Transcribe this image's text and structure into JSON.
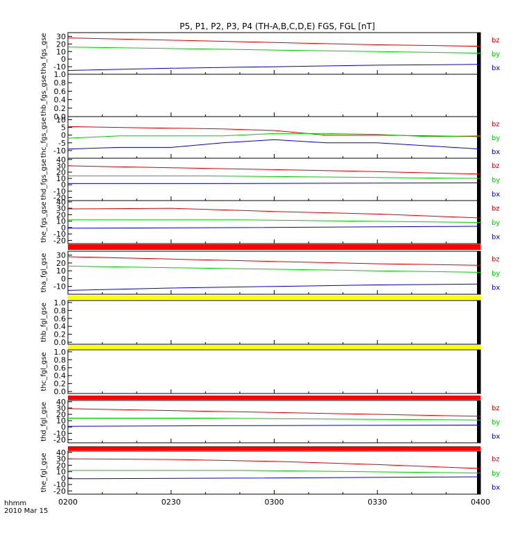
{
  "title": "P5, P1, P2, P3, P4 (TH-A,B,C,D,E) FGS, FGL [nT]",
  "x_axis": {
    "ticks": [
      "0200",
      "0230",
      "0300",
      "0330",
      "0400"
    ],
    "label_line1": "hhmm",
    "label_line2": "2010 Mar 15",
    "range_minutes": [
      0,
      120
    ]
  },
  "colors": {
    "bz": "#e00000",
    "by": "#00d000",
    "bx": "#0000d0",
    "red_bar": "#ff0000",
    "yellow_bar": "#ffff00"
  },
  "chart_data": [
    {
      "type": "line",
      "ylabel": "tha_fgs_gse",
      "ylim": [
        -20,
        35
      ],
      "yticks": [
        "-10",
        "0",
        "10",
        "20",
        "30"
      ],
      "legend": [
        "bz",
        "by",
        "bx"
      ],
      "series": [
        {
          "name": "bz",
          "x": [
            0,
            30,
            60,
            90,
            120
          ],
          "values": [
            28,
            25,
            22,
            19,
            17
          ]
        },
        {
          "name": "by",
          "x": [
            0,
            30,
            60,
            90,
            120
          ],
          "values": [
            16,
            14,
            12,
            10,
            8
          ]
        },
        {
          "name": "bx",
          "x": [
            0,
            30,
            60,
            90,
            120
          ],
          "values": [
            -15,
            -12,
            -10,
            -8,
            -7
          ]
        }
      ]
    },
    {
      "type": "line",
      "ylabel": "thb_fgs_gse",
      "ylim": [
        0,
        1
      ],
      "yticks": [
        "0.0",
        "0.2",
        "0.4",
        "0.6",
        "0.8",
        "1.0"
      ],
      "legend": [],
      "series": []
    },
    {
      "type": "line",
      "ylabel": "thc_fgs_gse",
      "ylim": [
        -15,
        12
      ],
      "yticks": [
        "-10",
        "-5",
        "0",
        "5",
        "10"
      ],
      "legend": [
        "bz",
        "by",
        "bx"
      ],
      "series": [
        {
          "name": "bz",
          "x": [
            0,
            15,
            30,
            45,
            60,
            75,
            90,
            105,
            120
          ],
          "values": [
            5.5,
            5,
            4.5,
            4,
            3,
            0,
            0,
            -0.5,
            -1
          ]
        },
        {
          "name": "by",
          "x": [
            0,
            15,
            30,
            45,
            60,
            75,
            90,
            105,
            120
          ],
          "values": [
            -2,
            -0.5,
            -0.5,
            -0.5,
            1,
            1,
            0.5,
            -1,
            -0.5
          ]
        },
        {
          "name": "bx",
          "x": [
            0,
            15,
            30,
            45,
            60,
            75,
            90,
            105,
            120
          ],
          "values": [
            -9,
            -8,
            -8,
            -5,
            -3,
            -5,
            -5,
            -7,
            -9
          ]
        }
      ]
    },
    {
      "type": "line",
      "ylabel": "thd_fgs_gse",
      "ylim": [
        -25,
        42
      ],
      "yticks": [
        "-20",
        "-10",
        "0",
        "10",
        "20",
        "30",
        "40"
      ],
      "legend": [
        "bz",
        "by",
        "bx"
      ],
      "series": [
        {
          "name": "bz",
          "x": [
            0,
            40,
            80,
            120
          ],
          "values": [
            30,
            26,
            22,
            17
          ]
        },
        {
          "name": "by",
          "x": [
            0,
            40,
            120
          ],
          "values": [
            14,
            14,
            10
          ]
        },
        {
          "name": "bx",
          "x": [
            0,
            40,
            120
          ],
          "values": [
            2,
            2,
            3
          ]
        }
      ]
    },
    {
      "type": "line",
      "ylabel": "the_fgs_gse",
      "ylim": [
        -25,
        42
      ],
      "yticks": [
        "-20",
        "-10",
        "0",
        "10",
        "20",
        "30",
        "40"
      ],
      "legend": [
        "bz",
        "by",
        "bx"
      ],
      "series": [
        {
          "name": "bz",
          "x": [
            0,
            30,
            60,
            90,
            120
          ],
          "values": [
            29,
            30,
            25,
            21,
            15
          ]
        },
        {
          "name": "by",
          "x": [
            0,
            50,
            120
          ],
          "values": [
            12,
            12,
            8
          ]
        },
        {
          "name": "bx",
          "x": [
            0,
            50,
            120
          ],
          "values": [
            -1,
            0,
            2
          ]
        }
      ]
    },
    {
      "type": "line",
      "ylabel": "tha_fgl_gse",
      "ylim": [
        -20,
        35
      ],
      "yticks": [
        "-10",
        "0",
        "10",
        "20",
        "30"
      ],
      "legend": [
        "bz",
        "by",
        "bx"
      ],
      "series": [
        {
          "name": "bz",
          "x": [
            0,
            30,
            60,
            90,
            120
          ],
          "values": [
            28,
            25,
            22,
            19,
            17
          ]
        },
        {
          "name": "by",
          "x": [
            0,
            30,
            60,
            90,
            120
          ],
          "values": [
            16,
            14,
            12,
            10,
            8
          ]
        },
        {
          "name": "bx",
          "x": [
            0,
            30,
            60,
            90,
            120
          ],
          "values": [
            -15,
            -12,
            -10,
            -8,
            -7
          ]
        }
      ]
    },
    {
      "type": "line",
      "ylabel": "thb_fgl_gse",
      "ylim": [
        -0.05,
        1.05
      ],
      "yticks": [
        "0.0",
        "0.2",
        "0.4",
        "0.6",
        "0.8",
        "1.0"
      ],
      "legend": [],
      "series": []
    },
    {
      "type": "line",
      "ylabel": "thc_fgl_gse",
      "ylim": [
        -0.05,
        1.05
      ],
      "yticks": [
        "0.0",
        "0.2",
        "0.4",
        "0.6",
        "0.8",
        "1.0"
      ],
      "legend": [],
      "series": []
    },
    {
      "type": "line",
      "ylabel": "thd_fgl_gse",
      "ylim": [
        -25,
        42
      ],
      "yticks": [
        "-20",
        "-10",
        "0",
        "10",
        "20",
        "30",
        "40"
      ],
      "legend": [
        "bz",
        "by",
        "bx"
      ],
      "series": [
        {
          "name": "bz",
          "x": [
            0,
            40,
            80,
            120
          ],
          "values": [
            29,
            25,
            21,
            17
          ]
        },
        {
          "name": "by",
          "x": [
            0,
            40,
            120
          ],
          "values": [
            14,
            14,
            11
          ]
        },
        {
          "name": "bx",
          "x": [
            0,
            40,
            120
          ],
          "values": [
            1,
            2,
            3
          ]
        }
      ]
    },
    {
      "type": "line",
      "ylabel": "the_fgl_gse",
      "ylim": [
        -25,
        42
      ],
      "yticks": [
        "-20",
        "-10",
        "0",
        "10",
        "20",
        "30",
        "40"
      ],
      "legend": [
        "bz",
        "by",
        "bx"
      ],
      "series": [
        {
          "name": "bz",
          "x": [
            0,
            30,
            60,
            90,
            120
          ],
          "values": [
            30,
            29,
            26,
            21,
            15
          ]
        },
        {
          "name": "by",
          "x": [
            0,
            50,
            120
          ],
          "values": [
            12,
            12,
            8
          ]
        },
        {
          "name": "bx",
          "x": [
            0,
            50,
            120
          ],
          "values": [
            -1,
            0,
            2
          ]
        }
      ]
    }
  ]
}
